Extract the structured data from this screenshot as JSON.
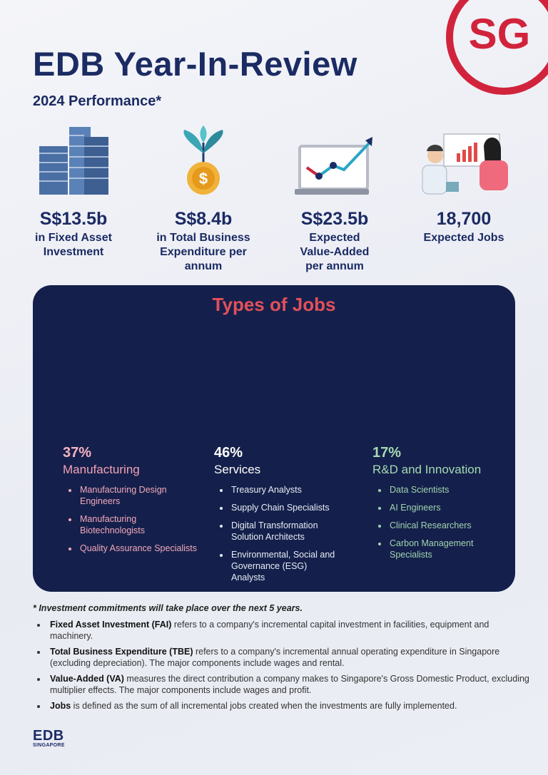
{
  "header": {
    "title": "EDB Year-In-Review",
    "subtitle": "2024 Performance*",
    "logo": "SG"
  },
  "stats": [
    {
      "value": "S$13.5b",
      "label": "in Fixed Asset Investment"
    },
    {
      "value": "S$8.4b",
      "label": "in Total Business Expenditure per annum"
    },
    {
      "value": "S$23.5b",
      "label": "Expected Value-Added per annum"
    },
    {
      "value": "18,700",
      "label": "Expected Jobs"
    }
  ],
  "jobs": {
    "title": "Types of Jobs",
    "columns": [
      {
        "percent": "37%",
        "name": "Manufacturing",
        "items": [
          "Manufacturing Design Engineers",
          "Manufacturing Biotechnologists",
          "Quality Assurance Specialists"
        ]
      },
      {
        "percent": "46%",
        "name": "Services",
        "items": [
          "Treasury Analysts",
          "Supply Chain Specialists",
          "Digital Transformation Solution Architects",
          "Environmental, Social and Governance (ESG) Analysts"
        ]
      },
      {
        "percent": "17%",
        "name": "R&D and Innovation",
        "items": [
          "Data Scientists",
          "AI Engineers",
          "Clinical Researchers",
          "Carbon Management Specialists"
        ]
      }
    ]
  },
  "footnote": "* Investment commitments will take place over the next 5 years.",
  "notes": [
    {
      "term": "Fixed Asset Investment (FAI)",
      "text": " refers to a company's incremental capital investment in facilities, equipment and machinery."
    },
    {
      "term": "Total Business Expenditure (TBE)",
      "text": " refers to a company's incremental annual operating expenditure in Singapore (excluding depreciation). The major components include wages and rental."
    },
    {
      "term": "Value-Added (VA)",
      "text": " measures the direct contribution a company makes to Singapore's Gross Domestic Product, excluding multiplier effects. The major components include wages and profit."
    },
    {
      "term": "Jobs",
      "text": " is defined as the sum of all incremental jobs created when the investments are fully implemented."
    }
  ],
  "footer": {
    "logo": "EDB",
    "logo_sub": "SINGAPORE"
  }
}
